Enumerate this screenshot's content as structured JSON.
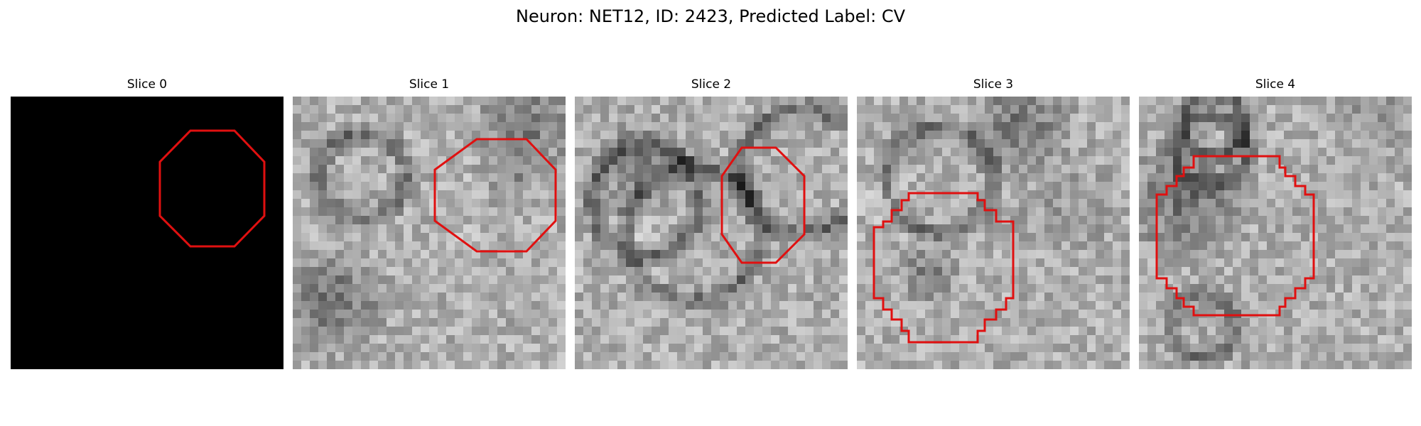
{
  "figure": {
    "title": "Neuron: NET12, ID: 2423, Predicted Label: CV"
  },
  "panels": [
    {
      "title": "Slice 0",
      "image": "blank-black-slice",
      "contour": "octagon"
    },
    {
      "title": "Slice 1",
      "image": "grayscale-em-slice",
      "contour": "octagon"
    },
    {
      "title": "Slice 2",
      "image": "grayscale-em-slice",
      "contour": "octagon"
    },
    {
      "title": "Slice 3",
      "image": "grayscale-em-slice",
      "contour": "stepped-polygon"
    },
    {
      "title": "Slice 4",
      "image": "grayscale-em-slice",
      "contour": "stepped-polygon"
    }
  ],
  "colors": {
    "contour": "#e01010",
    "background": "#ffffff",
    "blank_slice": "#000000"
  }
}
